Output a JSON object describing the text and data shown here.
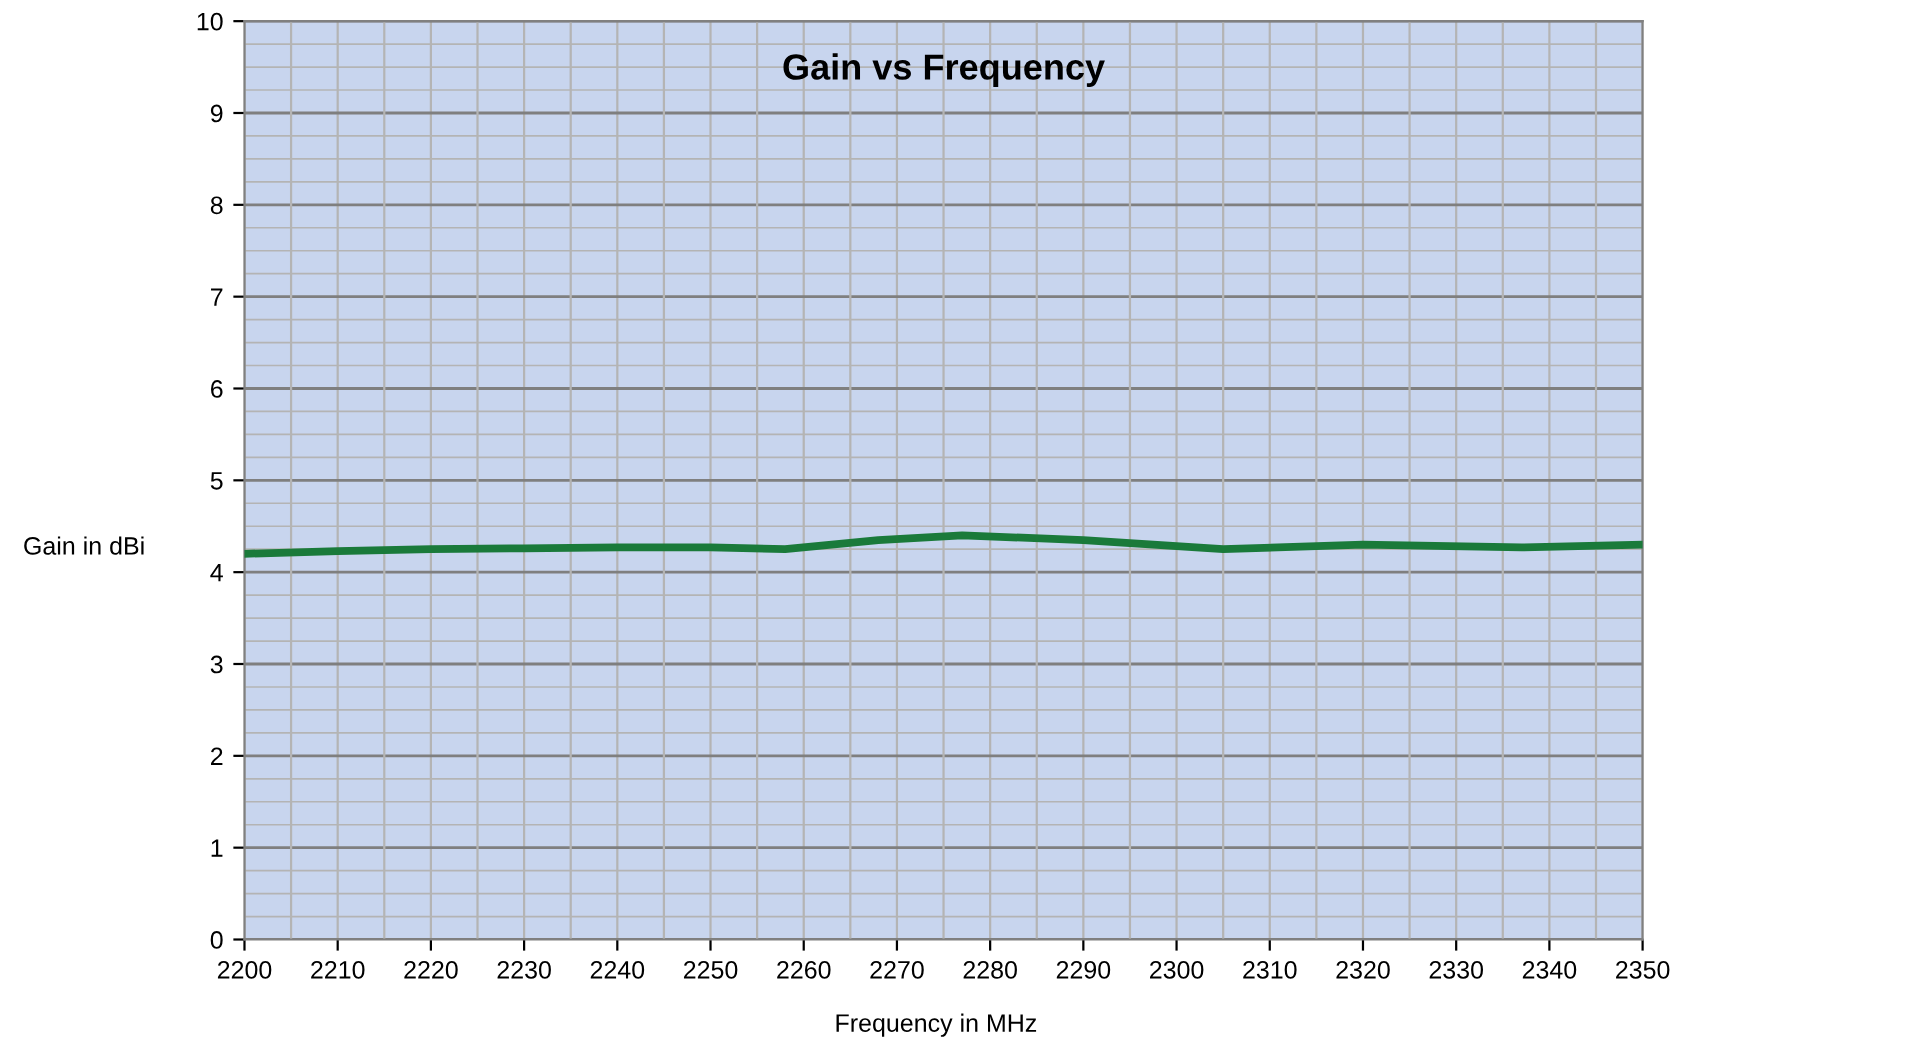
{
  "chart_data": {
    "type": "line",
    "title": "Gain vs Frequency",
    "xlabel": "Frequency in MHz",
    "ylabel": "Gain in dBi",
    "x": [
      2200,
      2210,
      2220,
      2230,
      2240,
      2250,
      2258,
      2268,
      2277,
      2290,
      2305,
      2320,
      2337,
      2350
    ],
    "series": [
      {
        "color": "#1a7a3a",
        "values": [
          4.2,
          4.23,
          4.25,
          4.26,
          4.27,
          4.27,
          4.25,
          4.35,
          4.4,
          4.35,
          4.25,
          4.3,
          4.27,
          4.3
        ]
      }
    ],
    "xlim": [
      2200,
      2350
    ],
    "xticks": [
      2200,
      2210,
      2220,
      2230,
      2240,
      2250,
      2260,
      2270,
      2280,
      2290,
      2300,
      2310,
      2320,
      2330,
      2340,
      2350
    ],
    "ylim": [
      0,
      10
    ],
    "yticks": [
      0,
      1,
      2,
      3,
      4,
      5,
      6,
      7,
      8,
      9,
      10
    ],
    "grid": true,
    "marker": "none",
    "line_style": "solid"
  }
}
